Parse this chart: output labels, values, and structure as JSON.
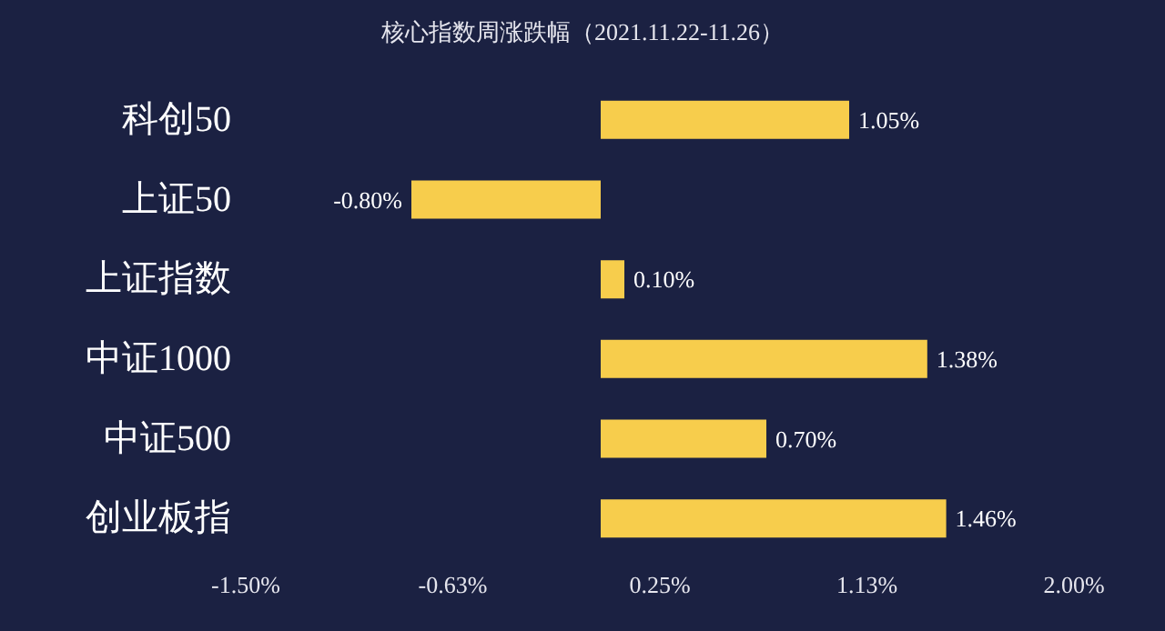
{
  "chart_data": {
    "type": "bar",
    "orientation": "horizontal",
    "title": "核心指数周涨跌幅（2021.11.22-11.26）",
    "categories": [
      "科创50",
      "上证50",
      "上证指数",
      "中证1000",
      "中证500",
      "创业板指"
    ],
    "values": [
      1.05,
      -0.8,
      0.1,
      1.38,
      0.7,
      1.46
    ],
    "value_labels": [
      "1.05%",
      "-0.80%",
      "0.10%",
      "1.38%",
      "0.70%",
      "1.46%"
    ],
    "color": "#f7cd4c",
    "xlim": [
      -1.5,
      2.0
    ],
    "xticks": [
      {
        "value": -1.5,
        "label": "-1.50%"
      },
      {
        "value": -0.625,
        "label": "-0.63%"
      },
      {
        "value": 0.25,
        "label": "0.25%"
      },
      {
        "value": 1.125,
        "label": "1.13%"
      },
      {
        "value": 2.0,
        "label": "2.00%"
      }
    ],
    "grid": false
  }
}
